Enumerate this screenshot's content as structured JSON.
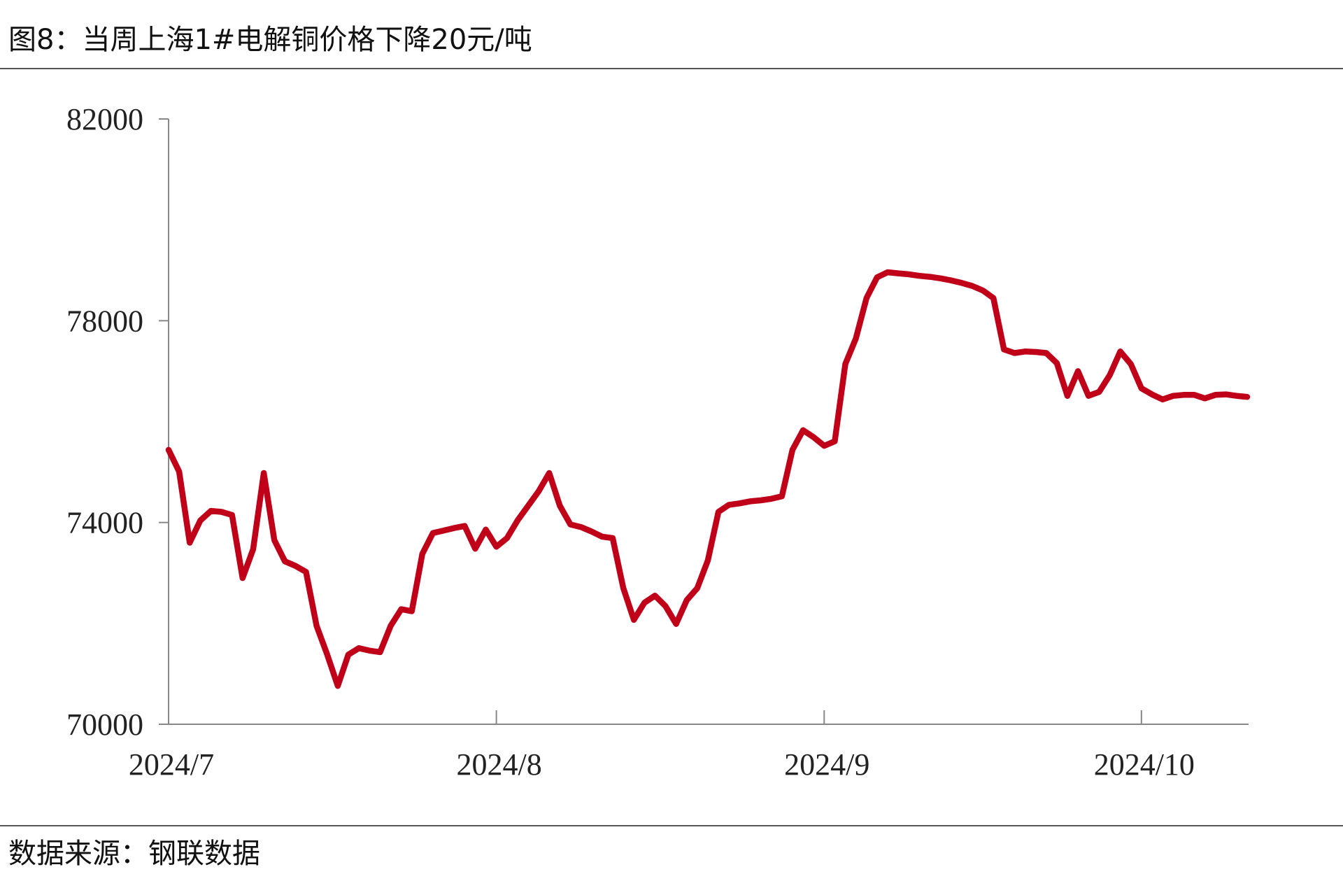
{
  "chart_data": {
    "type": "line",
    "title": "图8：当周上海1#电解铜价格下降20元/吨",
    "source": "数据来源：钢联数据",
    "categories": [
      "2024/7",
      null,
      null,
      null,
      null,
      null,
      null,
      null,
      null,
      null,
      null,
      null,
      null,
      null,
      null,
      null,
      null,
      null,
      null,
      null,
      null,
      null,
      null,
      null,
      null,
      null,
      null,
      null,
      null,
      null,
      null,
      "2024/8",
      null,
      null,
      null,
      null,
      null,
      null,
      null,
      null,
      null,
      null,
      null,
      null,
      null,
      null,
      null,
      null,
      null,
      null,
      null,
      null,
      null,
      null,
      null,
      null,
      null,
      null,
      null,
      null,
      null,
      null,
      "2024/9",
      null,
      null,
      null,
      null,
      null,
      null,
      null,
      null,
      null,
      null,
      null,
      null,
      null,
      null,
      null,
      null,
      null,
      null,
      null,
      null,
      null,
      null,
      null,
      null,
      null,
      null,
      null,
      null,
      null,
      "2024/10",
      null,
      null,
      null,
      null,
      null,
      null,
      null,
      null,
      null,
      null
    ],
    "series": [
      {
        "color": "#c00018",
        "values": [
          75440,
          75010,
          73600,
          74040,
          74230,
          74210,
          74150,
          72900,
          73470,
          74980,
          73650,
          73230,
          73140,
          73020,
          71950,
          71380,
          70760,
          71380,
          71510,
          71460,
          71430,
          71950,
          72280,
          72240,
          73380,
          73790,
          73840,
          73890,
          73930,
          73480,
          73860,
          73520,
          73690,
          74040,
          74330,
          74620,
          74980,
          74330,
          73960,
          73910,
          73820,
          73720,
          73690,
          72700,
          72070,
          72410,
          72550,
          72340,
          71990,
          72460,
          72700,
          73250,
          74210,
          74350,
          74380,
          74420,
          74440,
          74470,
          74520,
          75440,
          75830,
          75690,
          75520,
          75610,
          77140,
          77650,
          78450,
          78860,
          78960,
          78940,
          78920,
          78890,
          78870,
          78840,
          78800,
          78750,
          78690,
          78600,
          78450,
          77430,
          77360,
          77390,
          77380,
          77360,
          77160,
          76510,
          77000,
          76510,
          76590,
          76920,
          77390,
          77140,
          76660,
          76540,
          76440,
          76510,
          76530,
          76530,
          76460,
          76530,
          76540,
          76510,
          76490
        ]
      }
    ],
    "ylim": [
      70000,
      82000
    ],
    "yticks": [
      70000,
      74000,
      78000,
      82000
    ]
  }
}
